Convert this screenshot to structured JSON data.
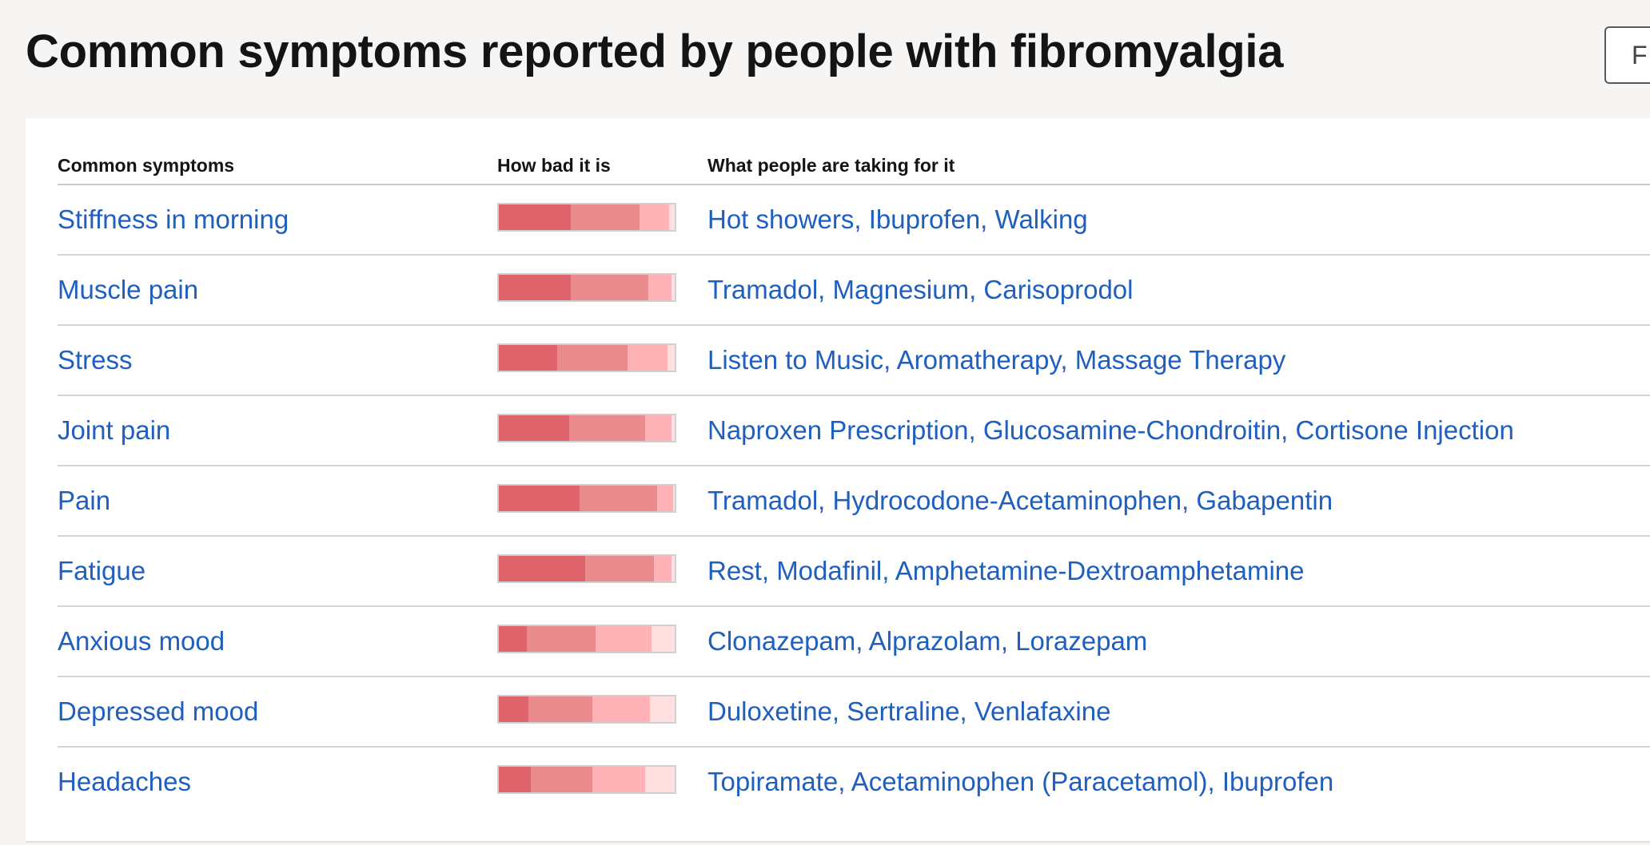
{
  "page": {
    "title": "Common symptoms reported by people with fibromyalgia",
    "top_button_label": "F"
  },
  "colors": {
    "link": "#1f5fbf",
    "severe": "#e0646b",
    "moderate": "#ea8c8e",
    "mild": "#ffb3b6",
    "none": "#ffdfe0"
  },
  "table": {
    "headers": {
      "symptom": "Common symptoms",
      "severity": "How bad it is",
      "treatments": "What people are taking for it"
    },
    "rows": [
      {
        "symptom": "Stiffness in morning",
        "treatments": "Hot showers, Ibuprofen, Walking",
        "severity": {
          "severe": 0.41,
          "moderate": 0.39,
          "mild": 0.17,
          "none": 0.03
        }
      },
      {
        "symptom": "Muscle pain",
        "treatments": "Tramadol, Magnesium, Carisoprodol",
        "severity": {
          "severe": 0.41,
          "moderate": 0.44,
          "mild": 0.13,
          "none": 0.02
        }
      },
      {
        "symptom": "Stress",
        "treatments": "Listen to Music, Aromatherapy, Massage Therapy",
        "severity": {
          "severe": 0.33,
          "moderate": 0.4,
          "mild": 0.23,
          "none": 0.04
        }
      },
      {
        "symptom": "Joint pain",
        "treatments": "Naproxen Prescription, Glucosamine-Chondroitin, Cortisone Injection",
        "severity": {
          "severe": 0.4,
          "moderate": 0.43,
          "mild": 0.15,
          "none": 0.02
        }
      },
      {
        "symptom": "Pain",
        "treatments": "Tramadol, Hydrocodone-Acetaminophen, Gabapentin",
        "severity": {
          "severe": 0.46,
          "moderate": 0.44,
          "mild": 0.09,
          "none": 0.01
        }
      },
      {
        "symptom": "Fatigue",
        "treatments": "Rest, Modafinil, Amphetamine-Dextroamphetamine",
        "severity": {
          "severe": 0.49,
          "moderate": 0.39,
          "mild": 0.1,
          "none": 0.02
        }
      },
      {
        "symptom": "Anxious mood",
        "treatments": "Clonazepam, Alprazolam, Lorazepam",
        "severity": {
          "severe": 0.16,
          "moderate": 0.39,
          "mild": 0.32,
          "none": 0.13
        }
      },
      {
        "symptom": "Depressed mood",
        "treatments": "Duloxetine, Sertraline, Venlafaxine",
        "severity": {
          "severe": 0.17,
          "moderate": 0.36,
          "mild": 0.33,
          "none": 0.14
        }
      },
      {
        "symptom": "Headaches",
        "treatments": "Topiramate, Acetaminophen (Paracetamol), Ibuprofen",
        "severity": {
          "severe": 0.18,
          "moderate": 0.35,
          "mild": 0.3,
          "none": 0.17
        }
      }
    ]
  }
}
